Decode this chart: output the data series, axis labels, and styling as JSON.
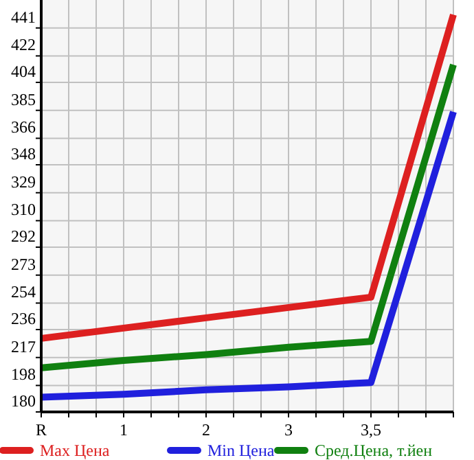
{
  "chart_data": {
    "type": "line",
    "categories": [
      "R",
      "1",
      "2",
      "3",
      "3,5",
      null
    ],
    "series": [
      {
        "name": "Max Цена",
        "color": "#dd2020",
        "values": [
          230,
          237,
          244,
          251,
          258,
          450
        ]
      },
      {
        "name": "Min Цена",
        "color": "#2020dd",
        "values": [
          190,
          192,
          195,
          197,
          200,
          384
        ]
      },
      {
        "name": "Сред.Цена, т.йен",
        "color": "#108010",
        "values": [
          210,
          215,
          219,
          224,
          228,
          416
        ]
      }
    ],
    "ylim": [
      180,
      460
    ],
    "yticks": [
      180,
      198,
      217,
      236,
      254,
      273,
      292,
      310,
      329,
      348,
      366,
      385,
      404,
      422,
      441
    ],
    "grid": true,
    "legend": "bottom",
    "line_style": "solid",
    "marker": "none"
  }
}
